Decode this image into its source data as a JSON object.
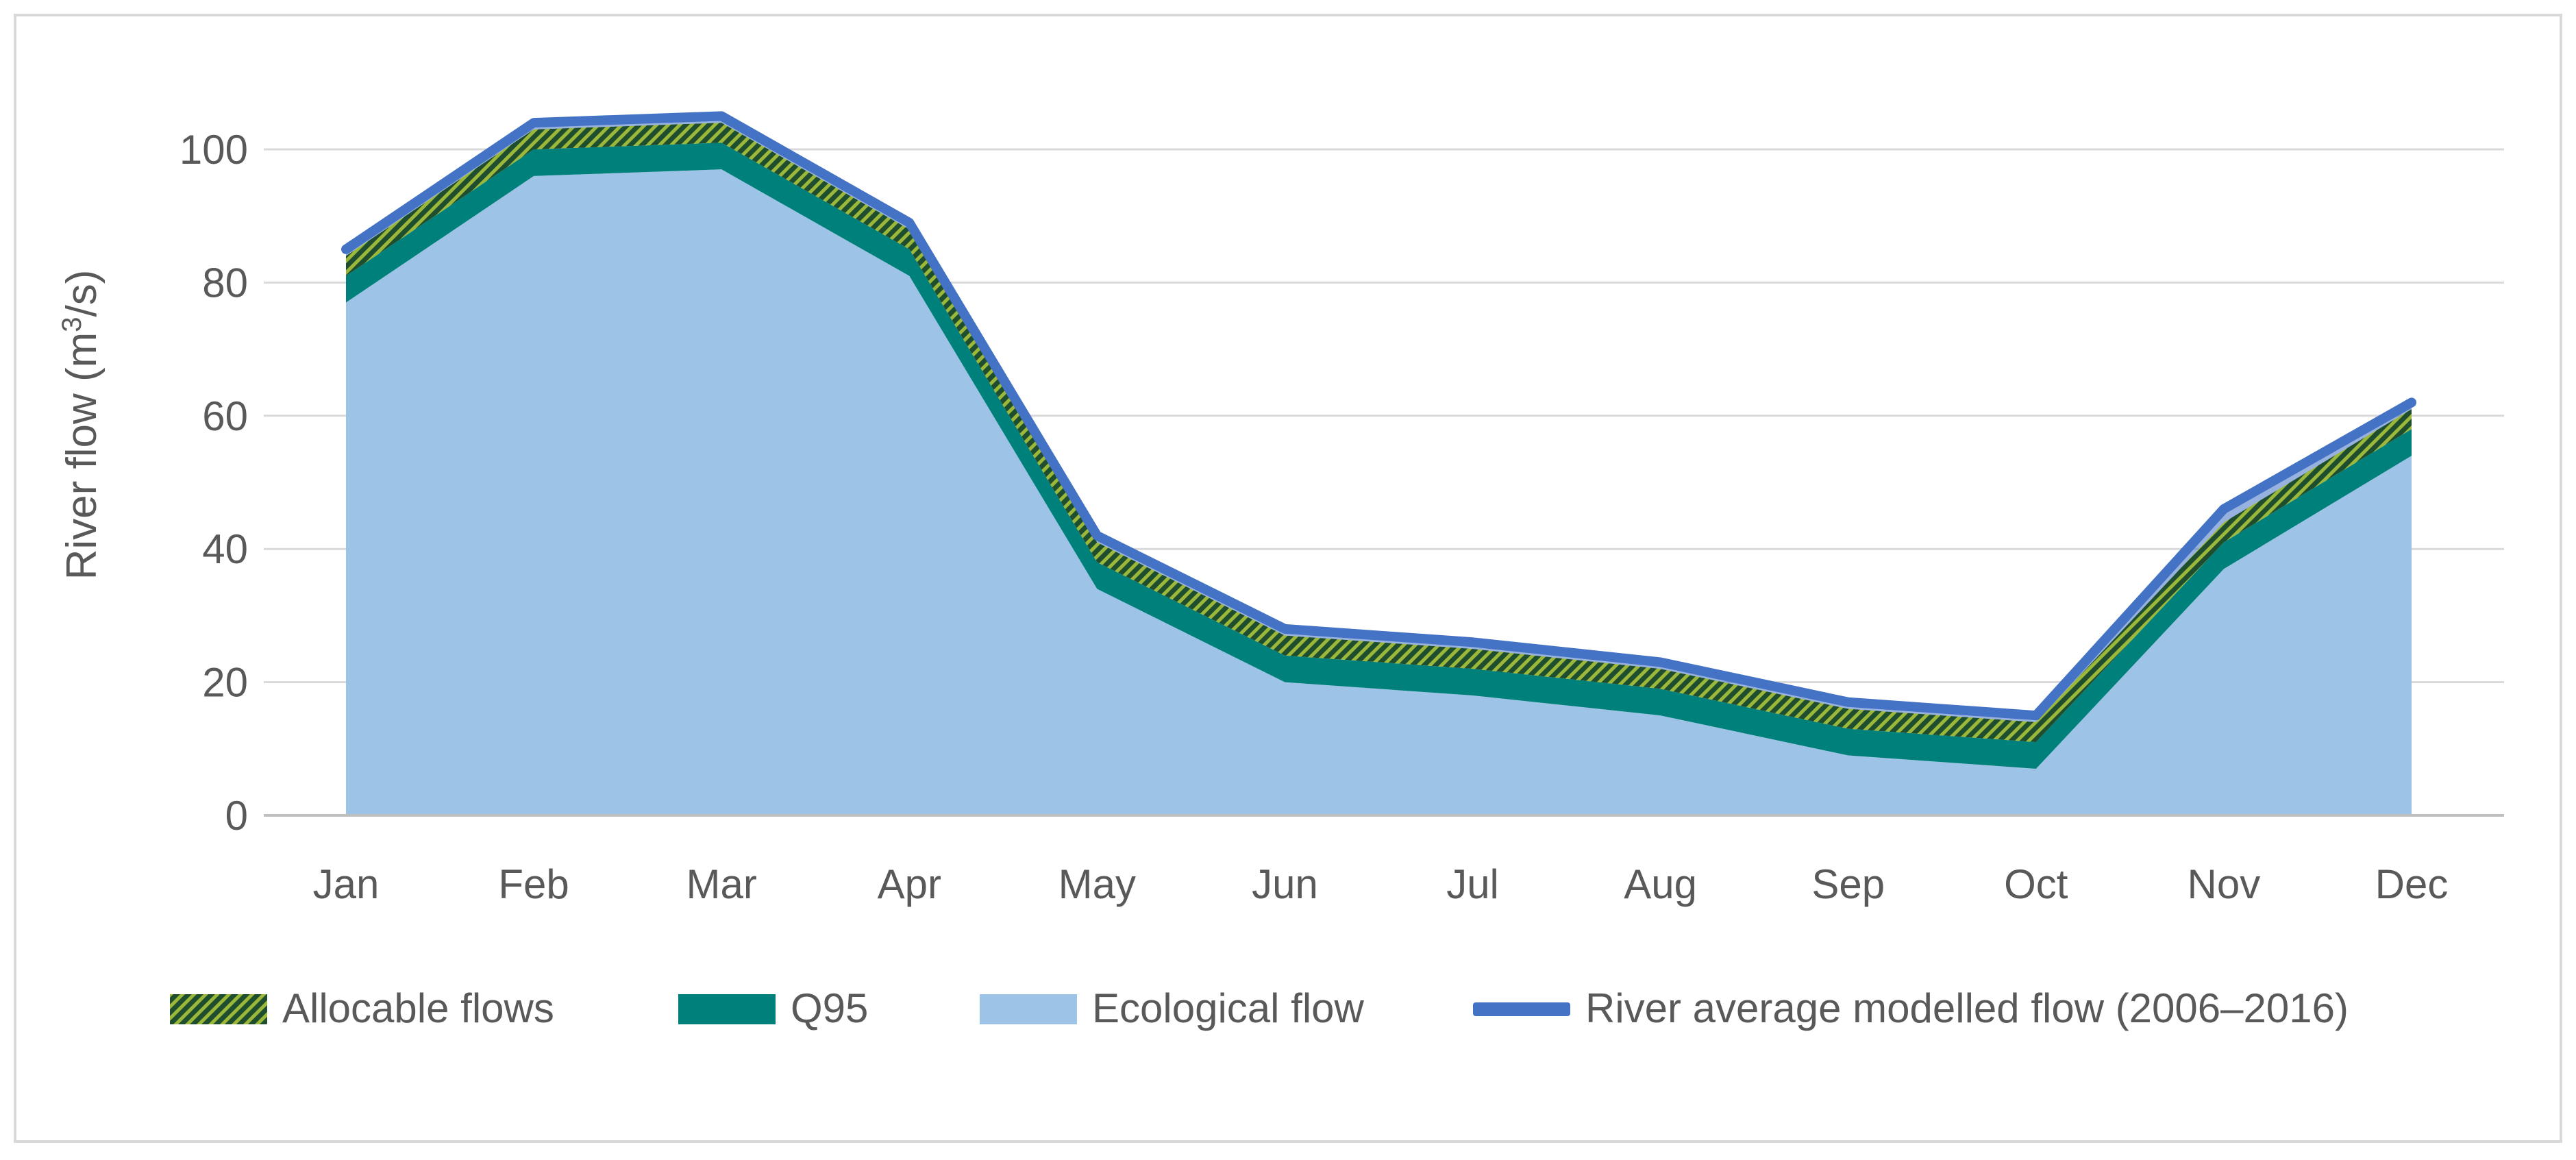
{
  "chart_data": {
    "type": "area",
    "title": "",
    "xlabel": "",
    "ylabel": "River flow (m³/s)",
    "ylabel_prefix": "River flow (m",
    "ylabel_sup": "3",
    "ylabel_suffix": "/s)",
    "ylim": [
      0,
      110
    ],
    "yticks": [
      0,
      20,
      40,
      60,
      80,
      100
    ],
    "ytick_labels": [
      "0",
      "20",
      "40",
      "60",
      "80",
      "100"
    ],
    "grid": true,
    "legend_position": "bottom",
    "categories": [
      "Jan",
      "Feb",
      "Mar",
      "Apr",
      "May",
      "Jun",
      "Jul",
      "Aug",
      "Sep",
      "Oct",
      "Nov",
      "Dec"
    ],
    "series": [
      {
        "name": "Ecological flow",
        "style": "area",
        "values": [
          77,
          96,
          97,
          81,
          34,
          20,
          18,
          15,
          9,
          7,
          37,
          54
        ]
      },
      {
        "name": "Q95",
        "style": "band-top",
        "values": [
          81,
          100,
          101,
          85,
          38,
          24,
          22,
          19,
          13,
          11,
          41,
          58
        ]
      },
      {
        "name": "Allocable flows",
        "style": "band-top",
        "values": [
          84,
          103,
          104,
          88,
          41,
          27,
          25,
          22,
          16,
          14,
          44,
          61
        ]
      },
      {
        "name": "River average modelled flow (2006–2016)",
        "style": "line",
        "values": [
          85,
          104,
          105,
          89,
          42,
          28,
          26,
          23,
          17,
          15,
          46,
          62
        ]
      }
    ],
    "legend": [
      {
        "key": "allocable",
        "label": "Allocable flows"
      },
      {
        "key": "q95",
        "label": "Q95"
      },
      {
        "key": "eco",
        "label": "Ecological flow"
      },
      {
        "key": "line",
        "label": "River average modelled flow (2006–2016)"
      }
    ],
    "colors": {
      "ecological": "#9DC3E6",
      "q95": "#00807A",
      "allocable_a": "#9BB83A",
      "allocable_b": "#1F4E2F",
      "line": "#4472C4",
      "grid": "#D9D9D9",
      "axis": "#BFBFBF",
      "frame": "#D9D9D9",
      "text": "#595959"
    }
  }
}
